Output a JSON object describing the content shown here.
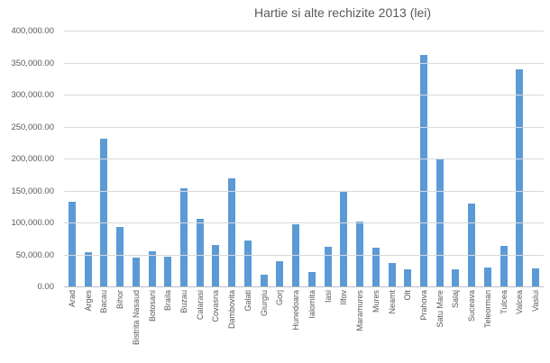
{
  "chart_data": {
    "type": "bar",
    "title": "Hartie si alte rechizite 2013 (lei)",
    "categories": [
      "Arad",
      "Arges",
      "Bacau",
      "Bihor",
      "Bistrita Nasaud",
      "Botosani",
      "Braila",
      "Buzau",
      "Calarasi",
      "Covasna",
      "Dambovita",
      "Galati",
      "Giurgiu",
      "Gorj",
      "Hunedoara",
      "Ialomita",
      "Iasi",
      "Ilfov",
      "Maramures",
      "Mures",
      "Neamt",
      "Olt",
      "Prahova",
      "Satu Mare",
      "Salaj",
      "Suceava",
      "Teleorman",
      "Tulcea",
      "Valcea",
      "Vaslui"
    ],
    "values": [
      132000,
      53000,
      231000,
      93000,
      45000,
      55000,
      46000,
      153000,
      106000,
      65000,
      169000,
      72000,
      19000,
      40000,
      97000,
      22000,
      62000,
      148000,
      102000,
      60000,
      36000,
      27000,
      362000,
      199000,
      27000,
      129000,
      30000,
      63000,
      340000,
      28000
    ],
    "xlabel": "",
    "ylabel": "",
    "ylim": [
      0,
      400000
    ],
    "ytick_step": 50000,
    "ytick_labels": [
      "400,000.00",
      "350,000.00",
      "300,000.00",
      "250,000.00",
      "200,000.00",
      "150,000.00",
      "100,000.00",
      "50,000.00",
      "0.00"
    ],
    "grid": true,
    "legend": false,
    "bar_color": "#5B9BD5",
    "text_color": "#595959",
    "gridline_color": "#D9D9D9",
    "axis_line_color": "#BFBFBF"
  }
}
